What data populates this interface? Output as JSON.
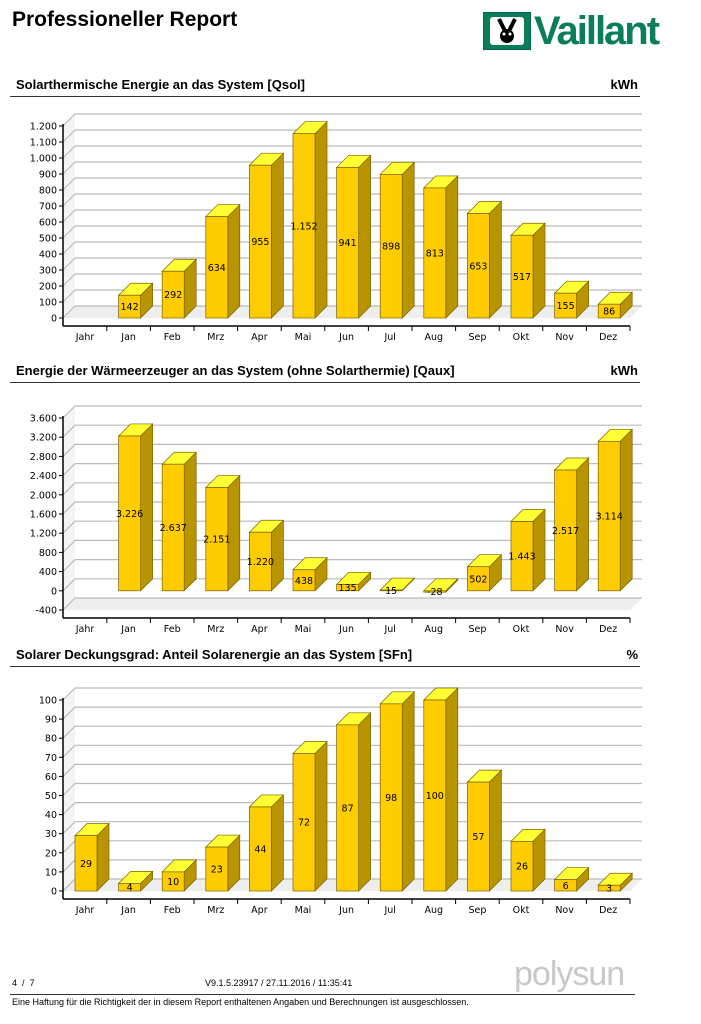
{
  "header": {
    "title": "Professioneller Report",
    "logo_text": "Vaillant"
  },
  "chart_data": [
    {
      "type": "bar",
      "title": "Solarthermische Energie an das System [Qsol]",
      "unit": "kWh",
      "categories": [
        "Jahr",
        "Jan",
        "Feb",
        "Mrz",
        "Apr",
        "Mai",
        "Jun",
        "Jul",
        "Aug",
        "Sep",
        "Okt",
        "Nov",
        "Dez"
      ],
      "values": [
        null,
        142,
        292,
        634,
        955,
        1152,
        941,
        898,
        813,
        653,
        517,
        155,
        86
      ],
      "ylim": [
        0,
        1200
      ],
      "yticks": [
        0,
        100,
        200,
        300,
        400,
        500,
        600,
        700,
        800,
        900,
        1000,
        1100,
        1200
      ],
      "grid": true,
      "style": "3d",
      "colors": {
        "front": "#FFCC00",
        "top": "#FFFF33",
        "side": "#B89400"
      }
    },
    {
      "type": "bar",
      "title": "Energie der Wärmeerzeuger an das System (ohne Solarthermie) [Qaux]",
      "unit": "kWh",
      "categories": [
        "Jahr",
        "Jan",
        "Feb",
        "Mrz",
        "Apr",
        "Mai",
        "Jun",
        "Jul",
        "Aug",
        "Sep",
        "Okt",
        "Nov",
        "Dez"
      ],
      "values": [
        null,
        3226,
        2637,
        2151,
        1220,
        438,
        135,
        15,
        -28,
        502,
        1443,
        2517,
        3114
      ],
      "ylim": [
        -400,
        3600
      ],
      "yticks": [
        -400,
        0,
        400,
        800,
        1200,
        1600,
        2000,
        2400,
        2800,
        3200,
        3600
      ],
      "grid": true,
      "style": "3d",
      "colors": {
        "front": "#FFCC00",
        "top": "#FFFF33",
        "side": "#B89400"
      }
    },
    {
      "type": "bar",
      "title": "Solarer Deckungsgrad: Anteil Solarenergie an das System [SFn]",
      "unit": "%",
      "categories": [
        "Jahr",
        "Jan",
        "Feb",
        "Mrz",
        "Apr",
        "Mai",
        "Jun",
        "Jul",
        "Aug",
        "Sep",
        "Okt",
        "Nov",
        "Dez"
      ],
      "values": [
        29,
        4,
        10,
        23,
        44,
        72,
        87,
        98,
        100,
        57,
        26,
        6,
        3
      ],
      "ylim": [
        0,
        100
      ],
      "yticks": [
        0,
        10,
        20,
        30,
        40,
        50,
        60,
        70,
        80,
        90,
        100
      ],
      "grid": true,
      "style": "3d",
      "colors": {
        "front": "#FFCC00",
        "top": "#FFFF33",
        "side": "#B89400"
      }
    }
  ],
  "footer": {
    "page_current": "4",
    "page_sep": "/",
    "page_total": "7",
    "version": "V9.1.5.23917 / 27.11.2016 / 11:35:41",
    "brand": "polysun",
    "disclaimer": "Eine Haftung für die Richtigkeit der in diesem Report enthaltenen Angaben und Berechnungen ist ausgeschlossen."
  }
}
